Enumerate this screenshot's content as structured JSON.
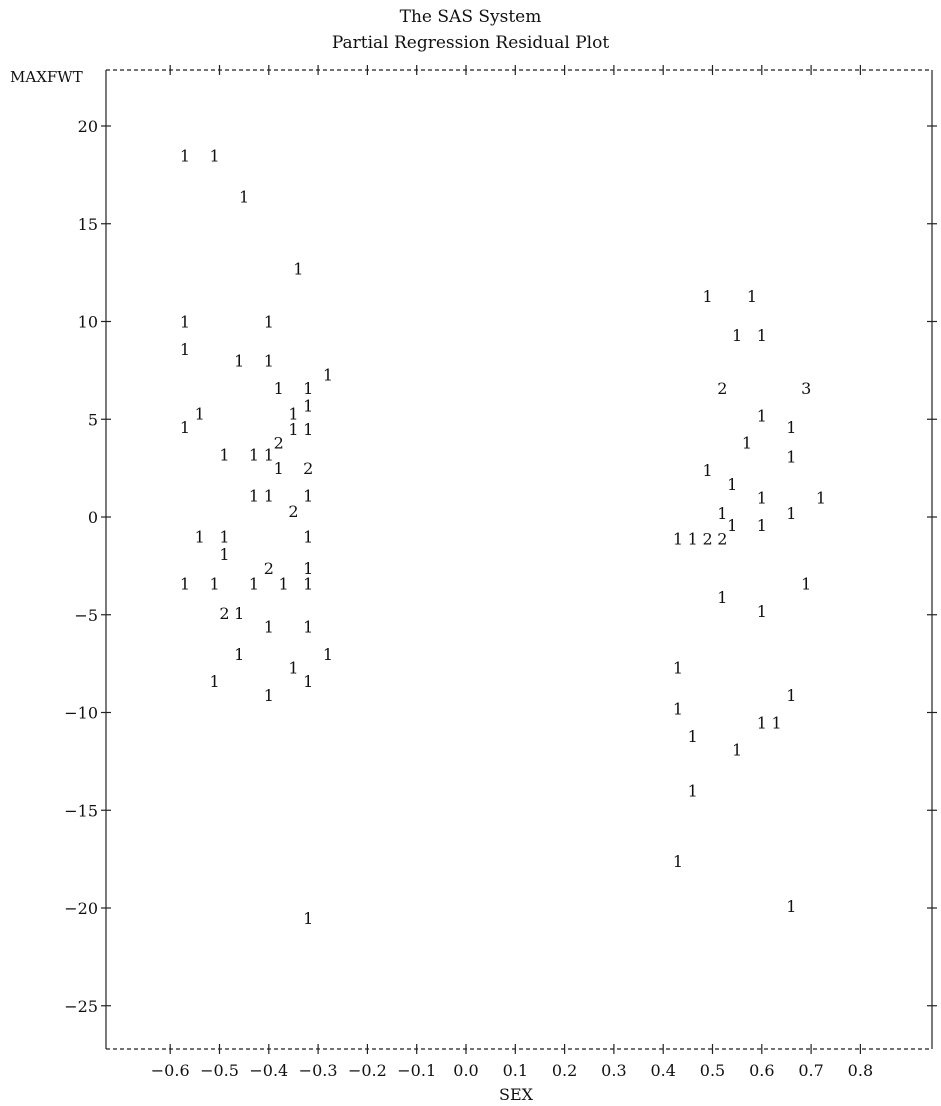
{
  "chart_data": {
    "type": "scatter",
    "title": "The SAS System",
    "subtitle": "Partial Regression Residual Plot",
    "xlabel": "SEX",
    "ylabel": "MAXFWT",
    "xlim": [
      -0.7,
      0.95
    ],
    "ylim": [
      -27,
      23
    ],
    "xticks": [
      -0.6,
      -0.5,
      -0.4,
      -0.3,
      -0.2,
      -0.1,
      0.0,
      0.1,
      0.2,
      0.3,
      0.4,
      0.5,
      0.6,
      0.7,
      0.8
    ],
    "xtick_labels": [
      "−0.6",
      "−0.5",
      "−0.4",
      "−0.3",
      "−0.2",
      "−0.1",
      "0.0",
      "0.1",
      "0.2",
      "0.3",
      "0.4",
      "0.5",
      "0.6",
      "0.7",
      "0.8"
    ],
    "yticks": [
      20,
      15,
      10,
      5,
      0,
      -5,
      -10,
      -15,
      -20,
      -25
    ],
    "ytick_labels": [
      "20",
      "15",
      "10",
      "5",
      "0",
      "−5",
      "−10",
      "−15",
      "−20",
      "−25"
    ],
    "top_ticks": [
      -0.6,
      -0.5,
      -0.4,
      -0.3,
      -0.2,
      -0.1,
      0.0,
      0.1,
      0.2,
      0.3,
      0.4,
      0.5,
      0.6,
      0.7,
      0.8
    ],
    "right_ticks": [
      20,
      15,
      10,
      5,
      0,
      -5,
      -10,
      -15,
      -20,
      -25
    ],
    "grid": false,
    "marker_note": "plot symbols show the number of observations at each position",
    "points": [
      {
        "x": -0.57,
        "y": 18.5,
        "label": "1"
      },
      {
        "x": -0.51,
        "y": 18.5,
        "label": "1"
      },
      {
        "x": -0.45,
        "y": 16.4,
        "label": "1"
      },
      {
        "x": -0.34,
        "y": 12.7,
        "label": "1"
      },
      {
        "x": -0.57,
        "y": 10.0,
        "label": "1"
      },
      {
        "x": -0.4,
        "y": 10.0,
        "label": "1"
      },
      {
        "x": -0.57,
        "y": 8.6,
        "label": "1"
      },
      {
        "x": -0.46,
        "y": 8.0,
        "label": "1"
      },
      {
        "x": -0.4,
        "y": 8.0,
        "label": "1"
      },
      {
        "x": -0.28,
        "y": 7.3,
        "label": "1"
      },
      {
        "x": -0.38,
        "y": 6.6,
        "label": "1"
      },
      {
        "x": -0.32,
        "y": 6.6,
        "label": "1"
      },
      {
        "x": -0.32,
        "y": 5.7,
        "label": "1"
      },
      {
        "x": -0.54,
        "y": 5.3,
        "label": "1"
      },
      {
        "x": -0.35,
        "y": 5.3,
        "label": "1"
      },
      {
        "x": -0.57,
        "y": 4.6,
        "label": "1"
      },
      {
        "x": -0.35,
        "y": 4.5,
        "label": "1"
      },
      {
        "x": -0.32,
        "y": 4.5,
        "label": "1"
      },
      {
        "x": -0.38,
        "y": 3.8,
        "label": "2"
      },
      {
        "x": -0.49,
        "y": 3.2,
        "label": "1"
      },
      {
        "x": -0.43,
        "y": 3.2,
        "label": "1"
      },
      {
        "x": -0.4,
        "y": 3.2,
        "label": "1"
      },
      {
        "x": -0.38,
        "y": 2.5,
        "label": "1"
      },
      {
        "x": -0.32,
        "y": 2.5,
        "label": "2"
      },
      {
        "x": -0.43,
        "y": 1.1,
        "label": "1"
      },
      {
        "x": -0.4,
        "y": 1.1,
        "label": "1"
      },
      {
        "x": -0.32,
        "y": 1.1,
        "label": "1"
      },
      {
        "x": -0.35,
        "y": 0.3,
        "label": "2"
      },
      {
        "x": -0.54,
        "y": -1.0,
        "label": "1"
      },
      {
        "x": -0.49,
        "y": -1.0,
        "label": "1"
      },
      {
        "x": -0.32,
        "y": -1.0,
        "label": "1"
      },
      {
        "x": -0.49,
        "y": -1.9,
        "label": "1"
      },
      {
        "x": -0.4,
        "y": -2.6,
        "label": "2"
      },
      {
        "x": -0.32,
        "y": -2.6,
        "label": "1"
      },
      {
        "x": -0.57,
        "y": -3.4,
        "label": "1"
      },
      {
        "x": -0.51,
        "y": -3.4,
        "label": "1"
      },
      {
        "x": -0.43,
        "y": -3.4,
        "label": "1"
      },
      {
        "x": -0.37,
        "y": -3.4,
        "label": "1"
      },
      {
        "x": -0.32,
        "y": -3.4,
        "label": "1"
      },
      {
        "x": -0.49,
        "y": -4.9,
        "label": "2"
      },
      {
        "x": -0.46,
        "y": -4.9,
        "label": "1"
      },
      {
        "x": -0.4,
        "y": -5.6,
        "label": "1"
      },
      {
        "x": -0.32,
        "y": -5.6,
        "label": "1"
      },
      {
        "x": -0.46,
        "y": -7.0,
        "label": "1"
      },
      {
        "x": -0.28,
        "y": -7.0,
        "label": "1"
      },
      {
        "x": -0.35,
        "y": -7.7,
        "label": "1"
      },
      {
        "x": -0.51,
        "y": -8.4,
        "label": "1"
      },
      {
        "x": -0.32,
        "y": -8.4,
        "label": "1"
      },
      {
        "x": -0.4,
        "y": -9.1,
        "label": "1"
      },
      {
        "x": -0.32,
        "y": -20.5,
        "label": "1"
      },
      {
        "x": 0.49,
        "y": 11.3,
        "label": "1"
      },
      {
        "x": 0.58,
        "y": 11.3,
        "label": "1"
      },
      {
        "x": 0.55,
        "y": 9.3,
        "label": "1"
      },
      {
        "x": 0.6,
        "y": 9.3,
        "label": "1"
      },
      {
        "x": 0.52,
        "y": 6.6,
        "label": "2"
      },
      {
        "x": 0.69,
        "y": 6.6,
        "label": "3"
      },
      {
        "x": 0.6,
        "y": 5.2,
        "label": "1"
      },
      {
        "x": 0.66,
        "y": 4.6,
        "label": "1"
      },
      {
        "x": 0.57,
        "y": 3.8,
        "label": "1"
      },
      {
        "x": 0.66,
        "y": 3.1,
        "label": "1"
      },
      {
        "x": 0.49,
        "y": 2.4,
        "label": "1"
      },
      {
        "x": 0.54,
        "y": 1.7,
        "label": "1"
      },
      {
        "x": 0.6,
        "y": 1.0,
        "label": "1"
      },
      {
        "x": 0.72,
        "y": 1.0,
        "label": "1"
      },
      {
        "x": 0.52,
        "y": 0.2,
        "label": "1"
      },
      {
        "x": 0.66,
        "y": 0.2,
        "label": "1"
      },
      {
        "x": 0.54,
        "y": -0.4,
        "label": "1"
      },
      {
        "x": 0.6,
        "y": -0.4,
        "label": "1"
      },
      {
        "x": 0.43,
        "y": -1.1,
        "label": "1"
      },
      {
        "x": 0.46,
        "y": -1.1,
        "label": "1"
      },
      {
        "x": 0.49,
        "y": -1.1,
        "label": "2"
      },
      {
        "x": 0.52,
        "y": -1.1,
        "label": "2"
      },
      {
        "x": 0.69,
        "y": -3.4,
        "label": "1"
      },
      {
        "x": 0.52,
        "y": -4.1,
        "label": "1"
      },
      {
        "x": 0.6,
        "y": -4.8,
        "label": "1"
      },
      {
        "x": 0.43,
        "y": -7.7,
        "label": "1"
      },
      {
        "x": 0.66,
        "y": -9.1,
        "label": "1"
      },
      {
        "x": 0.43,
        "y": -9.8,
        "label": "1"
      },
      {
        "x": 0.6,
        "y": -10.5,
        "label": "1"
      },
      {
        "x": 0.63,
        "y": -10.5,
        "label": "1"
      },
      {
        "x": 0.46,
        "y": -11.2,
        "label": "1"
      },
      {
        "x": 0.55,
        "y": -11.9,
        "label": "1"
      },
      {
        "x": 0.46,
        "y": -14.0,
        "label": "1"
      },
      {
        "x": 0.43,
        "y": -17.6,
        "label": "1"
      },
      {
        "x": 0.66,
        "y": -19.9,
        "label": "1"
      }
    ]
  }
}
